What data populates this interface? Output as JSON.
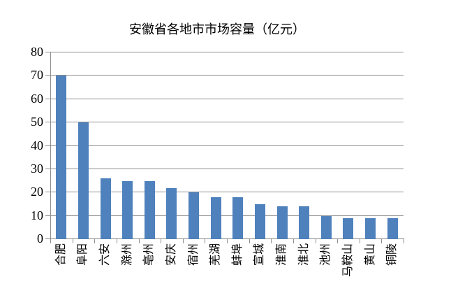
{
  "chart_data": {
    "type": "bar",
    "title": "安徽省各地市市场容量（亿元）",
    "categories": [
      "合肥",
      "阜阳",
      "六安",
      "滁州",
      "亳州",
      "安庆",
      "宿州",
      "芜湖",
      "蚌埠",
      "宣城",
      "淮南",
      "淮北",
      "池州",
      "马鞍山",
      "黄山",
      "铜陵"
    ],
    "values": [
      70,
      50,
      26,
      25,
      25,
      22,
      20,
      18,
      18,
      15,
      14,
      14,
      10,
      9,
      9,
      9
    ],
    "xlabel": "",
    "ylabel": "",
    "ylim": [
      0,
      80
    ],
    "yticks": [
      0,
      10,
      20,
      30,
      40,
      50,
      60,
      70,
      80
    ],
    "grid": "horizontal",
    "legend_position": "none",
    "x_label_rotation_deg": -90,
    "colors": {
      "bar": "#4F81BD",
      "gridline": "#8E8E8E",
      "axis": "#8E8E8E",
      "text": "#000000",
      "background": "#FFFFFF"
    }
  }
}
